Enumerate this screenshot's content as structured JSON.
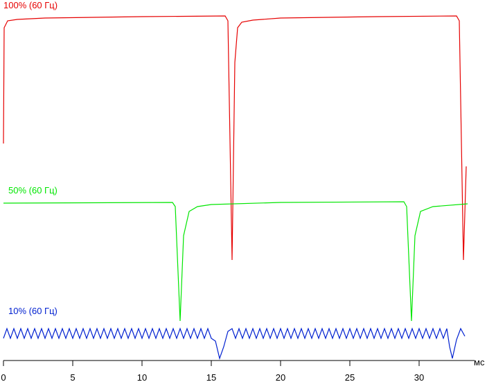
{
  "chart_data": {
    "type": "line",
    "x_label": "мс",
    "xlim": [
      0,
      34
    ],
    "xticks": [
      0,
      5,
      10,
      15,
      20,
      25,
      30
    ],
    "ylim": [
      0,
      520
    ],
    "series": [
      {
        "name": "100% (60 Гц)",
        "color": "#e60000",
        "x": [
          0,
          0.05,
          0.3,
          1,
          3,
          10,
          16.0,
          16.2,
          16.5,
          16.7,
          16.9,
          17.2,
          18,
          20,
          27,
          32.7,
          32.9,
          33.2,
          33.4
        ],
        "values": [
          313,
          480,
          490,
          492,
          494,
          496,
          497,
          490,
          145,
          430,
          480,
          488,
          491,
          494,
          496,
          497,
          490,
          145,
          280
        ]
      },
      {
        "name": "50% (60 Гц)",
        "color": "#00e600",
        "x": [
          0,
          12.2,
          12.4,
          12.75,
          13.0,
          13.4,
          14,
          15,
          20,
          28.9,
          29.1,
          29.45,
          29.7,
          30.1,
          31,
          33.5
        ],
        "values": [
          227,
          228,
          222,
          57,
          180,
          215,
          222,
          225,
          228,
          229,
          222,
          57,
          180,
          215,
          222,
          226
        ]
      },
      {
        "name": "10% (60 Гц)",
        "color": "#0020d0",
        "x": [
          0,
          0.25,
          0.5,
          0.75,
          1,
          1.25,
          1.5,
          1.75,
          2,
          2.25,
          2.5,
          2.75,
          3,
          3.25,
          3.5,
          3.75,
          4,
          4.25,
          4.5,
          4.75,
          5,
          5.25,
          5.5,
          5.75,
          6,
          6.25,
          6.5,
          6.75,
          7,
          7.25,
          7.5,
          7.75,
          8,
          8.25,
          8.5,
          8.75,
          9,
          9.25,
          9.5,
          9.75,
          10,
          10.25,
          10.5,
          10.75,
          11,
          11.25,
          11.5,
          11.75,
          12,
          12.25,
          12.5,
          12.75,
          13,
          13.25,
          13.5,
          13.75,
          14,
          14.25,
          14.5,
          14.75,
          15,
          15.3,
          15.6,
          15.9,
          16.2,
          16.5,
          16.75,
          17,
          17.25,
          17.5,
          17.75,
          18,
          18.25,
          18.5,
          18.75,
          19,
          19.25,
          19.5,
          19.75,
          20,
          20.25,
          20.5,
          20.75,
          21,
          21.25,
          21.5,
          21.75,
          22,
          22.25,
          22.5,
          22.75,
          23,
          23.25,
          23.5,
          23.75,
          24,
          24.25,
          24.5,
          24.75,
          25,
          25.25,
          25.5,
          25.75,
          26,
          26.25,
          26.5,
          26.75,
          27,
          27.25,
          27.5,
          27.75,
          28,
          28.25,
          28.5,
          28.75,
          29,
          29.25,
          29.5,
          29.75,
          30,
          30.25,
          30.5,
          30.75,
          31,
          31.25,
          31.5,
          31.75,
          32,
          32.2,
          32.4,
          32.7,
          33.0,
          33.3
        ],
        "values": [
          32,
          46,
          32,
          46,
          32,
          46,
          32,
          46,
          32,
          46,
          32,
          46,
          32,
          46,
          32,
          46,
          32,
          46,
          32,
          46,
          32,
          46,
          32,
          46,
          32,
          46,
          32,
          46,
          32,
          46,
          32,
          46,
          32,
          46,
          32,
          46,
          32,
          46,
          32,
          46,
          32,
          46,
          32,
          46,
          32,
          46,
          32,
          46,
          32,
          46,
          32,
          46,
          32,
          46,
          32,
          46,
          32,
          46,
          32,
          46,
          32,
          28,
          3,
          20,
          42,
          46,
          32,
          46,
          32,
          46,
          32,
          46,
          32,
          46,
          32,
          46,
          32,
          46,
          32,
          46,
          32,
          46,
          32,
          46,
          32,
          46,
          32,
          46,
          32,
          46,
          32,
          46,
          32,
          46,
          32,
          46,
          32,
          46,
          32,
          46,
          32,
          46,
          32,
          46,
          32,
          46,
          32,
          46,
          32,
          46,
          32,
          46,
          32,
          46,
          32,
          46,
          32,
          46,
          32,
          46,
          32,
          46,
          32,
          46,
          32,
          46,
          32,
          46,
          20,
          3,
          30,
          46,
          35
        ]
      }
    ]
  }
}
